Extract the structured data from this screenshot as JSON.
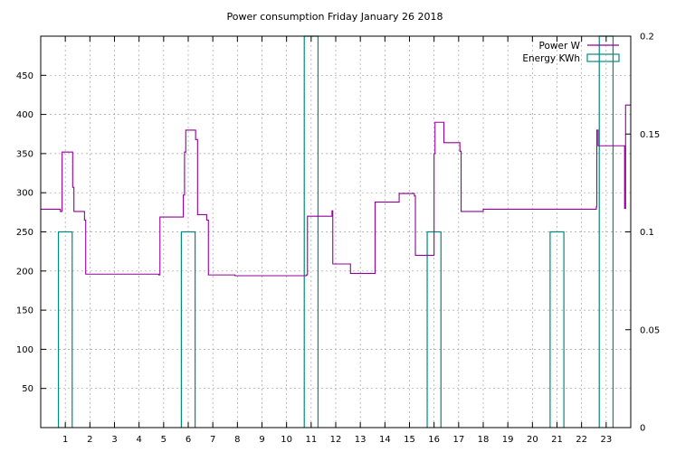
{
  "chart_data": {
    "type": "line",
    "title": "Power consumption Friday January 26 2018",
    "xlabel": "",
    "ylabel": "",
    "xlim": [
      0,
      24
    ],
    "ylim": [
      0,
      500
    ],
    "y2lim": [
      0,
      0.2
    ],
    "x_ticks": [
      1,
      2,
      3,
      4,
      5,
      6,
      7,
      8,
      9,
      10,
      11,
      12,
      13,
      14,
      15,
      16,
      17,
      18,
      19,
      20,
      21,
      22,
      23
    ],
    "y_ticks": [
      50,
      100,
      150,
      200,
      250,
      300,
      350,
      400,
      450
    ],
    "y2_ticks": [
      "0",
      "0.05",
      "0.1",
      "0.15",
      "0.2"
    ],
    "y2_tick_values": [
      0,
      0.05,
      0.1,
      0.15,
      0.2
    ],
    "grid": true,
    "legend_position": "top-right",
    "series": [
      {
        "name": "Power W",
        "type": "step-line",
        "color": "#94009a",
        "x": [
          0,
          0.8,
          0.8,
          0.87,
          0.87,
          1.3,
          1.3,
          1.35,
          1.35,
          1.78,
          1.78,
          1.83,
          1.83,
          4.8,
          4.8,
          4.85,
          4.85,
          5.8,
          5.8,
          5.85,
          5.85,
          5.9,
          5.9,
          6.3,
          6.3,
          6.38,
          6.38,
          6.75,
          6.75,
          6.82,
          6.82,
          7.9,
          7.9,
          10.8,
          10.8,
          10.85,
          10.85,
          11.85,
          11.85,
          11.88,
          11.88,
          12.6,
          12.6,
          13.6,
          13.6,
          14.58,
          14.58,
          15.2,
          15.2,
          15.24,
          15.24,
          16.0,
          16.0,
          16.04,
          16.04,
          16.4,
          16.4,
          17.05,
          17.05,
          17.1,
          17.1,
          18.0,
          18.0,
          22.6,
          22.6,
          22.62,
          22.62,
          22.67,
          22.67,
          23.75,
          23.75,
          23.79,
          23.79,
          24.0
        ],
        "y": [
          279,
          279,
          276,
          276,
          352,
          352,
          307,
          307,
          276,
          276,
          265,
          265,
          196,
          196,
          195,
          195,
          269,
          269,
          297,
          297,
          352,
          352,
          380,
          380,
          368,
          368,
          272,
          272,
          265,
          265,
          195,
          195,
          194,
          194,
          195,
          195,
          270,
          270,
          277,
          277,
          209,
          209,
          197,
          197,
          288,
          288,
          299,
          299,
          296,
          296,
          220,
          220,
          350,
          350,
          390,
          390,
          364,
          364,
          353,
          353,
          276,
          276,
          279,
          279,
          282,
          282,
          380,
          380,
          360,
          360,
          280,
          280,
          412,
          412
        ]
      },
      {
        "name": "Energy KWh",
        "type": "impulse-bars",
        "color": "#008b7a",
        "x_start": [
          0.72,
          5.72,
          10.72,
          15.72,
          20.72,
          22.72
        ],
        "x_end": [
          1.28,
          6.28,
          11.28,
          16.28,
          21.28,
          23.28
        ],
        "values": [
          0.1,
          0.1,
          0.2,
          0.1,
          0.1,
          0.2
        ]
      }
    ]
  }
}
